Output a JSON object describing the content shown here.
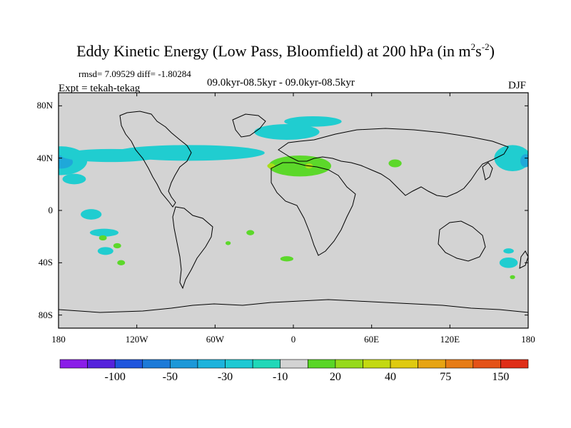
{
  "title": {
    "main": "Eddy Kinetic Energy (Low Pass, Bloomfield) at 200 hPa (in m",
    "sup1": "2",
    "mid": "s",
    "sup2": "-2",
    "end": ")"
  },
  "stats": "rmsd= 7.09529 diff= -1.80284",
  "period": "09.0kyr-08.5kyr - 09.0kyr-08.5kyr",
  "expt": "Expt = tekah-tekag",
  "season": "DJF",
  "map": {
    "lat_range": [
      -90,
      90
    ],
    "lon_range": [
      -180,
      180
    ],
    "background_color": "#d3d3d3",
    "lat_labels": [
      {
        "lat": 80,
        "text": "80N"
      },
      {
        "lat": 40,
        "text": "40N"
      },
      {
        "lat": 0,
        "text": "0"
      },
      {
        "lat": -40,
        "text": "40S"
      },
      {
        "lat": -80,
        "text": "80S"
      }
    ],
    "lon_labels": [
      {
        "lon": -180,
        "text": "180"
      },
      {
        "lon": -120,
        "text": "120W"
      },
      {
        "lon": -60,
        "text": "60W"
      },
      {
        "lon": 0,
        "text": "0"
      },
      {
        "lon": 60,
        "text": "60E"
      },
      {
        "lon": 120,
        "text": "120E"
      },
      {
        "lon": 180,
        "text": "180"
      }
    ],
    "anomalies": [
      {
        "id": "npac-west",
        "lon": -178,
        "lat": 38,
        "rlon": 20,
        "rlat": 11,
        "color": "#20cdd0"
      },
      {
        "id": "npac-west-core",
        "lon": -178,
        "lat": 37,
        "rlon": 9,
        "rlat": 5,
        "color": "#1fa8d9"
      },
      {
        "id": "npac-east-band",
        "lon": -140,
        "lat": 42,
        "rlon": 38,
        "rlat": 5,
        "color": "#20cdd0"
      },
      {
        "id": "npac-south-lobe",
        "lon": -168,
        "lat": 24,
        "rlon": 9,
        "rlat": 4,
        "color": "#20cdd0"
      },
      {
        "id": "natl-band",
        "lon": -80,
        "lat": 44,
        "rlon": 58,
        "rlat": 6,
        "color": "#20cdd0"
      },
      {
        "id": "north-atlantic",
        "lon": -5,
        "lat": 60,
        "rlon": 25,
        "rlat": 6,
        "color": "#20cdd0"
      },
      {
        "id": "europe",
        "lon": 15,
        "lat": 68,
        "rlon": 22,
        "rlat": 4,
        "color": "#20cdd0"
      },
      {
        "id": "mediterranean",
        "lon": 5,
        "lat": 34,
        "rlon": 24,
        "rlat": 8,
        "color": "#5cd82a"
      },
      {
        "id": "mediterranean-core-1",
        "lon": -17,
        "lat": 34,
        "rlon": 3,
        "rlat": 2,
        "color": "#aadd1a"
      },
      {
        "id": "mediterranean-core-2",
        "lon": 12,
        "lat": 34,
        "rlon": 3,
        "rlat": 2,
        "color": "#aadd1a"
      },
      {
        "id": "south-atlantic-blob",
        "lon": 78,
        "lat": 36,
        "rlon": 5,
        "rlat": 3,
        "color": "#5cd82a"
      },
      {
        "id": "npac-east-limb",
        "lon": 168,
        "lat": 40,
        "rlon": 14,
        "rlat": 10,
        "color": "#20cdd0"
      },
      {
        "id": "npac-east-core",
        "lon": 178,
        "lat": 38,
        "rlon": 4,
        "rlat": 5,
        "color": "#1fa8d9"
      },
      {
        "id": "trop-pac-1",
        "lon": -155,
        "lat": -3,
        "rlon": 8,
        "rlat": 4,
        "color": "#20cdd0"
      },
      {
        "id": "trop-pac-2",
        "lon": -145,
        "lat": -17,
        "rlon": 11,
        "rlat": 3,
        "color": "#20cdd0"
      },
      {
        "id": "spac-green-1",
        "lon": -146,
        "lat": -21,
        "rlon": 3,
        "rlat": 2,
        "color": "#5cd82a"
      },
      {
        "id": "spac-green-2",
        "lon": -135,
        "lat": -27,
        "rlon": 3,
        "rlat": 2,
        "color": "#5cd82a"
      },
      {
        "id": "spac-cyan",
        "lon": -144,
        "lat": -31,
        "rlon": 6,
        "rlat": 3,
        "color": "#20cdd0"
      },
      {
        "id": "spac-green-3",
        "lon": -132,
        "lat": -40,
        "rlon": 3,
        "rlat": 2,
        "color": "#5cd82a"
      },
      {
        "id": "satl-green-1",
        "lon": -33,
        "lat": -17,
        "rlon": 3,
        "rlat": 2,
        "color": "#5cd82a"
      },
      {
        "id": "satl-green-2",
        "lon": -50,
        "lat": -25,
        "rlon": 2,
        "rlat": 1.5,
        "color": "#5cd82a"
      },
      {
        "id": "satl-green-3",
        "lon": -5,
        "lat": -37,
        "rlon": 5,
        "rlat": 2,
        "color": "#5cd82a"
      },
      {
        "id": "austral-cyan-1",
        "lon": 165,
        "lat": -31,
        "rlon": 4,
        "rlat": 2,
        "color": "#20cdd0"
      },
      {
        "id": "austral-cyan-2",
        "lon": 165,
        "lat": -40,
        "rlon": 7,
        "rlat": 4,
        "color": "#20cdd0"
      },
      {
        "id": "austral-green",
        "lon": 168,
        "lat": -51,
        "rlon": 2,
        "rlat": 1.5,
        "color": "#5cd82a"
      }
    ]
  },
  "colorbar": {
    "colors": [
      "#8a1de8",
      "#5522dc",
      "#1f55dd",
      "#1c7ad8",
      "#1c98d8",
      "#1cb3dc",
      "#1dc9d3",
      "#20d8b8",
      "#d3d3d3",
      "#59d626",
      "#96da1b",
      "#c3d911",
      "#dfca10",
      "#e7a413",
      "#e77c16",
      "#e45218",
      "#df2e18"
    ],
    "labels": [
      {
        "index": 2,
        "text": "-100"
      },
      {
        "index": 4,
        "text": "-50"
      },
      {
        "index": 6,
        "text": "-30"
      },
      {
        "index": 8,
        "text": "-10"
      },
      {
        "index": 10,
        "text": "20"
      },
      {
        "index": 12,
        "text": "40"
      },
      {
        "index": 14,
        "text": "75"
      },
      {
        "index": 16,
        "text": "150"
      }
    ]
  }
}
